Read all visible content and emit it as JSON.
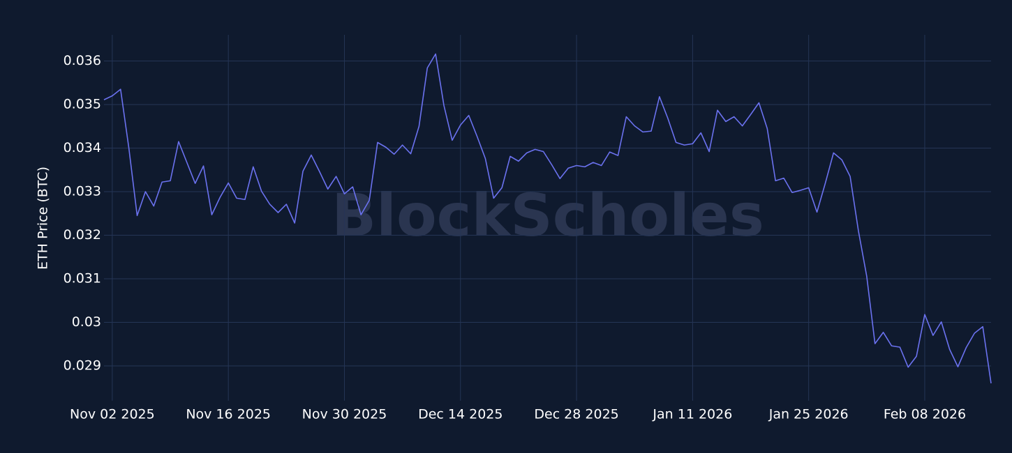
{
  "chart_data": {
    "type": "line",
    "y_label": "ETH Price (BTC)",
    "watermark": "BlockScholes",
    "x": [
      "2025-11-01",
      "2025-11-02",
      "2025-11-03",
      "2025-11-04",
      "2025-11-05",
      "2025-11-06",
      "2025-11-07",
      "2025-11-08",
      "2025-11-09",
      "2025-11-10",
      "2025-11-11",
      "2025-11-12",
      "2025-11-13",
      "2025-11-14",
      "2025-11-15",
      "2025-11-16",
      "2025-11-17",
      "2025-11-18",
      "2025-11-19",
      "2025-11-20",
      "2025-11-21",
      "2025-11-22",
      "2025-11-23",
      "2025-11-24",
      "2025-11-25",
      "2025-11-26",
      "2025-11-27",
      "2025-11-28",
      "2025-11-29",
      "2025-11-30",
      "2025-12-01",
      "2025-12-02",
      "2025-12-03",
      "2025-12-04",
      "2025-12-05",
      "2025-12-06",
      "2025-12-07",
      "2025-12-08",
      "2025-12-09",
      "2025-12-10",
      "2025-12-11",
      "2025-12-12",
      "2025-12-13",
      "2025-12-14",
      "2025-12-15",
      "2025-12-16",
      "2025-12-17",
      "2025-12-18",
      "2025-12-19",
      "2025-12-20",
      "2025-12-21",
      "2025-12-22",
      "2025-12-23",
      "2025-12-24",
      "2025-12-25",
      "2025-12-26",
      "2025-12-27",
      "2025-12-28",
      "2025-12-29",
      "2025-12-30",
      "2025-12-31",
      "2026-01-01",
      "2026-01-02",
      "2026-01-03",
      "2026-01-04",
      "2026-01-05",
      "2026-01-06",
      "2026-01-07",
      "2026-01-08",
      "2026-01-09",
      "2026-01-10",
      "2026-01-11",
      "2026-01-12",
      "2026-01-13",
      "2026-01-14",
      "2026-01-15",
      "2026-01-16",
      "2026-01-17",
      "2026-01-18",
      "2026-01-19",
      "2026-01-20",
      "2026-01-21",
      "2026-01-22",
      "2026-01-23",
      "2026-01-24",
      "2026-01-25",
      "2026-01-26",
      "2026-01-27",
      "2026-01-28",
      "2026-01-29",
      "2026-01-30",
      "2026-01-31",
      "2026-02-01",
      "2026-02-02",
      "2026-02-03",
      "2026-02-04",
      "2026-02-05",
      "2026-02-06",
      "2026-02-07",
      "2026-02-08",
      "2026-02-09",
      "2026-02-10",
      "2026-02-11",
      "2026-02-12",
      "2026-02-13",
      "2026-02-14",
      "2026-02-15",
      "2026-02-16"
    ],
    "series": [
      {
        "name": "ETH Price (BTC)",
        "color": "#6b72f0",
        "values": [
          0.03511,
          0.0352,
          0.03535,
          0.034,
          0.03245,
          0.033,
          0.03267,
          0.03322,
          0.03325,
          0.03415,
          0.03367,
          0.03319,
          0.03359,
          0.03247,
          0.03287,
          0.0332,
          0.03285,
          0.03282,
          0.03357,
          0.03301,
          0.03271,
          0.03252,
          0.03271,
          0.03228,
          0.03347,
          0.03384,
          0.03346,
          0.03306,
          0.03335,
          0.03295,
          0.03311,
          0.03247,
          0.0328,
          0.03413,
          0.03402,
          0.03386,
          0.03407,
          0.03387,
          0.0345,
          0.03584,
          0.03616,
          0.03498,
          0.03418,
          0.03453,
          0.03475,
          0.03427,
          0.03376,
          0.03285,
          0.03309,
          0.03381,
          0.0337,
          0.03389,
          0.03397,
          0.03392,
          0.03362,
          0.0333,
          0.03354,
          0.0336,
          0.03357,
          0.03367,
          0.0336,
          0.03391,
          0.03383,
          0.03472,
          0.03451,
          0.03437,
          0.03439,
          0.03518,
          0.03469,
          0.03413,
          0.03407,
          0.0341,
          0.03435,
          0.03392,
          0.03487,
          0.03461,
          0.03472,
          0.03451,
          0.03477,
          0.03504,
          0.03445,
          0.03325,
          0.03331,
          0.03298,
          0.03303,
          0.03309,
          0.03253,
          0.03319,
          0.03389,
          0.03373,
          0.03335,
          0.0321,
          0.03106,
          0.02951,
          0.02977,
          0.02946,
          0.02943,
          0.02897,
          0.02922,
          0.03018,
          0.0297,
          0.03001,
          0.02938,
          0.02898,
          0.02942,
          0.02975,
          0.0299,
          0.0286
        ]
      }
    ],
    "xlim": [
      "2025-11-01",
      "2026-02-16"
    ],
    "xticks": [
      {
        "value": "2025-11-02",
        "label": "Nov 02 2025"
      },
      {
        "value": "2025-11-16",
        "label": "Nov 16 2025"
      },
      {
        "value": "2025-11-30",
        "label": "Nov 30 2025"
      },
      {
        "value": "2025-12-14",
        "label": "Dec 14 2025"
      },
      {
        "value": "2025-12-28",
        "label": "Dec 28 2025"
      },
      {
        "value": "2026-01-11",
        "label": "Jan 11 2026"
      },
      {
        "value": "2026-01-25",
        "label": "Jan 25 2026"
      },
      {
        "value": "2026-02-08",
        "label": "Feb 08 2026"
      }
    ],
    "ylim": [
      0.0282,
      0.0366
    ],
    "yticks": [
      0.029,
      0.03,
      0.031,
      0.032,
      0.033,
      0.034,
      0.035,
      0.036
    ],
    "grid": true
  }
}
